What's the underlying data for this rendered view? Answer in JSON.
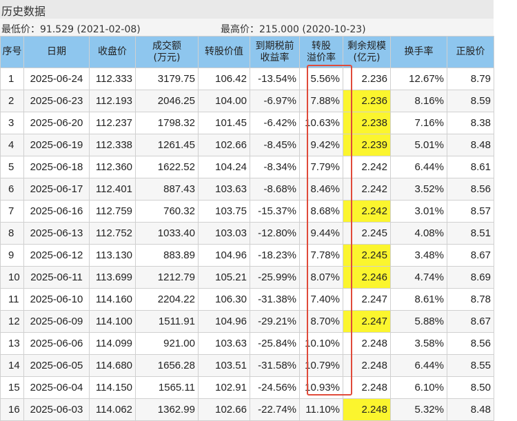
{
  "title": "历史数据",
  "stats": {
    "low_label": "最低价",
    "low_value": "91.529",
    "low_date": "(2021-02-08)",
    "high_label": "最高价",
    "high_value": "215.000",
    "high_date": "(2020-10-23)"
  },
  "columns": [
    {
      "key": "idx",
      "line1": "序号",
      "line2": ""
    },
    {
      "key": "date",
      "line1": "日期",
      "line2": ""
    },
    {
      "key": "close",
      "line1": "收盘价",
      "line2": ""
    },
    {
      "key": "amount",
      "line1": "成交额",
      "line2": "(万元)"
    },
    {
      "key": "conv_value",
      "line1": "转股价值",
      "line2": ""
    },
    {
      "key": "ytm",
      "line1": "到期税前",
      "line2": "收益率"
    },
    {
      "key": "premium",
      "line1": "转股",
      "line2": "溢价率"
    },
    {
      "key": "remaining",
      "line1": "剩余规模",
      "line2": "(亿元)"
    },
    {
      "key": "turnover",
      "line1": "换手率",
      "line2": ""
    },
    {
      "key": "stock_price",
      "line1": "正股价",
      "line2": ""
    }
  ],
  "rows": [
    {
      "idx": "1",
      "date": "2025-06-24",
      "close": "112.333",
      "amount": "3179.75",
      "conv_value": "106.42",
      "ytm": "-13.54%",
      "premium": "5.56%",
      "remaining": "2.236",
      "turnover": "12.67%",
      "stock_price": "8.79",
      "highlight": false
    },
    {
      "idx": "2",
      "date": "2025-06-23",
      "close": "112.193",
      "amount": "2046.25",
      "conv_value": "104.00",
      "ytm": "-6.97%",
      "premium": "7.88%",
      "remaining": "2.236",
      "turnover": "8.16%",
      "stock_price": "8.59",
      "highlight": true
    },
    {
      "idx": "3",
      "date": "2025-06-20",
      "close": "112.237",
      "amount": "1798.32",
      "conv_value": "101.45",
      "ytm": "-6.42%",
      "premium": "10.63%",
      "remaining": "2.238",
      "turnover": "7.16%",
      "stock_price": "8.38",
      "highlight": true
    },
    {
      "idx": "4",
      "date": "2025-06-19",
      "close": "112.338",
      "amount": "1261.45",
      "conv_value": "102.66",
      "ytm": "-8.45%",
      "premium": "9.42%",
      "remaining": "2.239",
      "turnover": "5.01%",
      "stock_price": "8.48",
      "highlight": true
    },
    {
      "idx": "5",
      "date": "2025-06-18",
      "close": "112.360",
      "amount": "1622.52",
      "conv_value": "104.24",
      "ytm": "-8.34%",
      "premium": "7.79%",
      "remaining": "2.242",
      "turnover": "6.44%",
      "stock_price": "8.61",
      "highlight": false
    },
    {
      "idx": "6",
      "date": "2025-06-17",
      "close": "112.401",
      "amount": "887.43",
      "conv_value": "103.63",
      "ytm": "-8.68%",
      "premium": "8.46%",
      "remaining": "2.242",
      "turnover": "3.52%",
      "stock_price": "8.56",
      "highlight": false
    },
    {
      "idx": "7",
      "date": "2025-06-16",
      "close": "112.759",
      "amount": "760.32",
      "conv_value": "103.75",
      "ytm": "-15.37%",
      "premium": "8.68%",
      "remaining": "2.242",
      "turnover": "3.01%",
      "stock_price": "8.57",
      "highlight": true
    },
    {
      "idx": "8",
      "date": "2025-06-13",
      "close": "112.752",
      "amount": "1033.40",
      "conv_value": "103.03",
      "ytm": "-12.80%",
      "premium": "9.44%",
      "remaining": "2.245",
      "turnover": "4.08%",
      "stock_price": "8.51",
      "highlight": false
    },
    {
      "idx": "9",
      "date": "2025-06-12",
      "close": "113.130",
      "amount": "883.89",
      "conv_value": "104.96",
      "ytm": "-18.23%",
      "premium": "7.78%",
      "remaining": "2.245",
      "turnover": "3.48%",
      "stock_price": "8.67",
      "highlight": true
    },
    {
      "idx": "10",
      "date": "2025-06-11",
      "close": "113.699",
      "amount": "1212.79",
      "conv_value": "105.21",
      "ytm": "-25.99%",
      "premium": "8.07%",
      "remaining": "2.246",
      "turnover": "4.74%",
      "stock_price": "8.69",
      "highlight": true
    },
    {
      "idx": "11",
      "date": "2025-06-10",
      "close": "114.160",
      "amount": "2204.22",
      "conv_value": "106.30",
      "ytm": "-31.38%",
      "premium": "7.40%",
      "remaining": "2.247",
      "turnover": "8.61%",
      "stock_price": "8.78",
      "highlight": false
    },
    {
      "idx": "12",
      "date": "2025-06-09",
      "close": "114.100",
      "amount": "1511.91",
      "conv_value": "104.96",
      "ytm": "-29.21%",
      "premium": "8.70%",
      "remaining": "2.247",
      "turnover": "5.88%",
      "stock_price": "8.67",
      "highlight": true
    },
    {
      "idx": "13",
      "date": "2025-06-06",
      "close": "114.099",
      "amount": "921.00",
      "conv_value": "103.63",
      "ytm": "-25.84%",
      "premium": "10.10%",
      "remaining": "2.248",
      "turnover": "3.58%",
      "stock_price": "8.56",
      "highlight": false
    },
    {
      "idx": "14",
      "date": "2025-06-05",
      "close": "114.680",
      "amount": "1656.28",
      "conv_value": "103.51",
      "ytm": "-31.58%",
      "premium": "10.79%",
      "remaining": "2.248",
      "turnover": "6.44%",
      "stock_price": "8.55",
      "highlight": false
    },
    {
      "idx": "15",
      "date": "2025-06-04",
      "close": "114.150",
      "amount": "1565.11",
      "conv_value": "102.91",
      "ytm": "-24.56%",
      "premium": "10.93%",
      "remaining": "2.248",
      "turnover": "6.10%",
      "stock_price": "8.50",
      "highlight": false
    },
    {
      "idx": "16",
      "date": "2025-06-03",
      "close": "114.062",
      "amount": "1362.99",
      "conv_value": "102.66",
      "ytm": "-22.74%",
      "premium": "11.10%",
      "remaining": "2.248",
      "turnover": "5.32%",
      "stock_price": "8.48",
      "highlight": true
    }
  ],
  "colors": {
    "header_bg": "#8ec6ee",
    "highlight": "#fbf52e",
    "annotation_box": "#e04a3a"
  }
}
